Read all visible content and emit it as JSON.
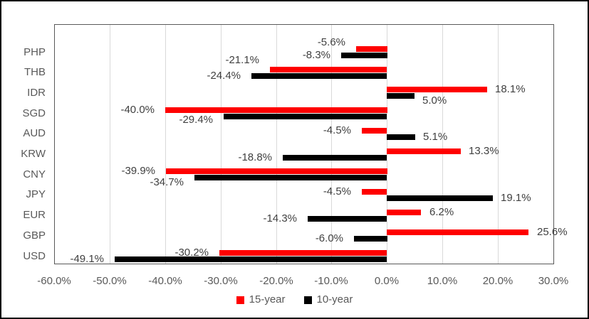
{
  "chart_data": {
    "type": "bar",
    "orientation": "horizontal",
    "title": "",
    "categories": [
      "PHP",
      "THB",
      "IDR",
      "SGD",
      "AUD",
      "KRW",
      "CNY",
      "JPY",
      "EUR",
      "GBP",
      "USD"
    ],
    "series": [
      {
        "name": "15-year",
        "color": "#FF0000",
        "values": [
          -5.6,
          -21.1,
          18.1,
          -40.0,
          -4.5,
          13.3,
          -39.9,
          -4.5,
          6.2,
          25.6,
          -30.2
        ],
        "labels": [
          "-5.6%",
          "-21.1%",
          "18.1%",
          "-40.0%",
          "-4.5%",
          "13.3%",
          "-39.9%",
          "-4.5%",
          "6.2%",
          "25.6%",
          "-30.2%"
        ],
        "label_dy": [
          -9,
          -13,
          0,
          0,
          0,
          0,
          0,
          0,
          0,
          0,
          0
        ]
      },
      {
        "name": "10-year",
        "color": "#000000",
        "values": [
          -8.3,
          -24.4,
          5.0,
          -29.4,
          5.1,
          -18.8,
          -34.7,
          19.1,
          -14.3,
          -6.0,
          -49.1
        ],
        "labels": [
          "-8.3%",
          "-24.4%",
          "5.0%",
          "-29.4%",
          "5.1%",
          "-18.8%",
          "-34.7%",
          "19.1%",
          "-14.3%",
          "-6.0%",
          "-49.1%"
        ],
        "label_dy": [
          0,
          0,
          7,
          5,
          0,
          0,
          7,
          0,
          0,
          0,
          0
        ]
      }
    ],
    "xlim": [
      -60,
      30
    ],
    "x_ticks": [
      {
        "value": -60,
        "label": "-60.0%"
      },
      {
        "value": -50,
        "label": "-50.0%"
      },
      {
        "value": -40,
        "label": "-40.0%"
      },
      {
        "value": -30,
        "label": "-30.0%"
      },
      {
        "value": -20,
        "label": "-20.0%"
      },
      {
        "value": -10,
        "label": "-10.0%"
      },
      {
        "value": 0,
        "label": "0.0%"
      },
      {
        "value": 10,
        "label": "10.0%"
      },
      {
        "value": 20,
        "label": "20.0%"
      },
      {
        "value": 30,
        "label": "30.0%"
      }
    ],
    "grid": true,
    "legend": {
      "position": "bottom",
      "entries": [
        {
          "label": "15-year",
          "color": "#FF0000"
        },
        {
          "label": "10-year",
          "color": "#000000"
        }
      ]
    },
    "colors": {
      "grid": "#D9D9D9",
      "plot_border": "#595959",
      "axis_text": "#595959",
      "data_label_text": "#404040",
      "background": "#FFFFFF",
      "frame_border": "#000000"
    }
  }
}
